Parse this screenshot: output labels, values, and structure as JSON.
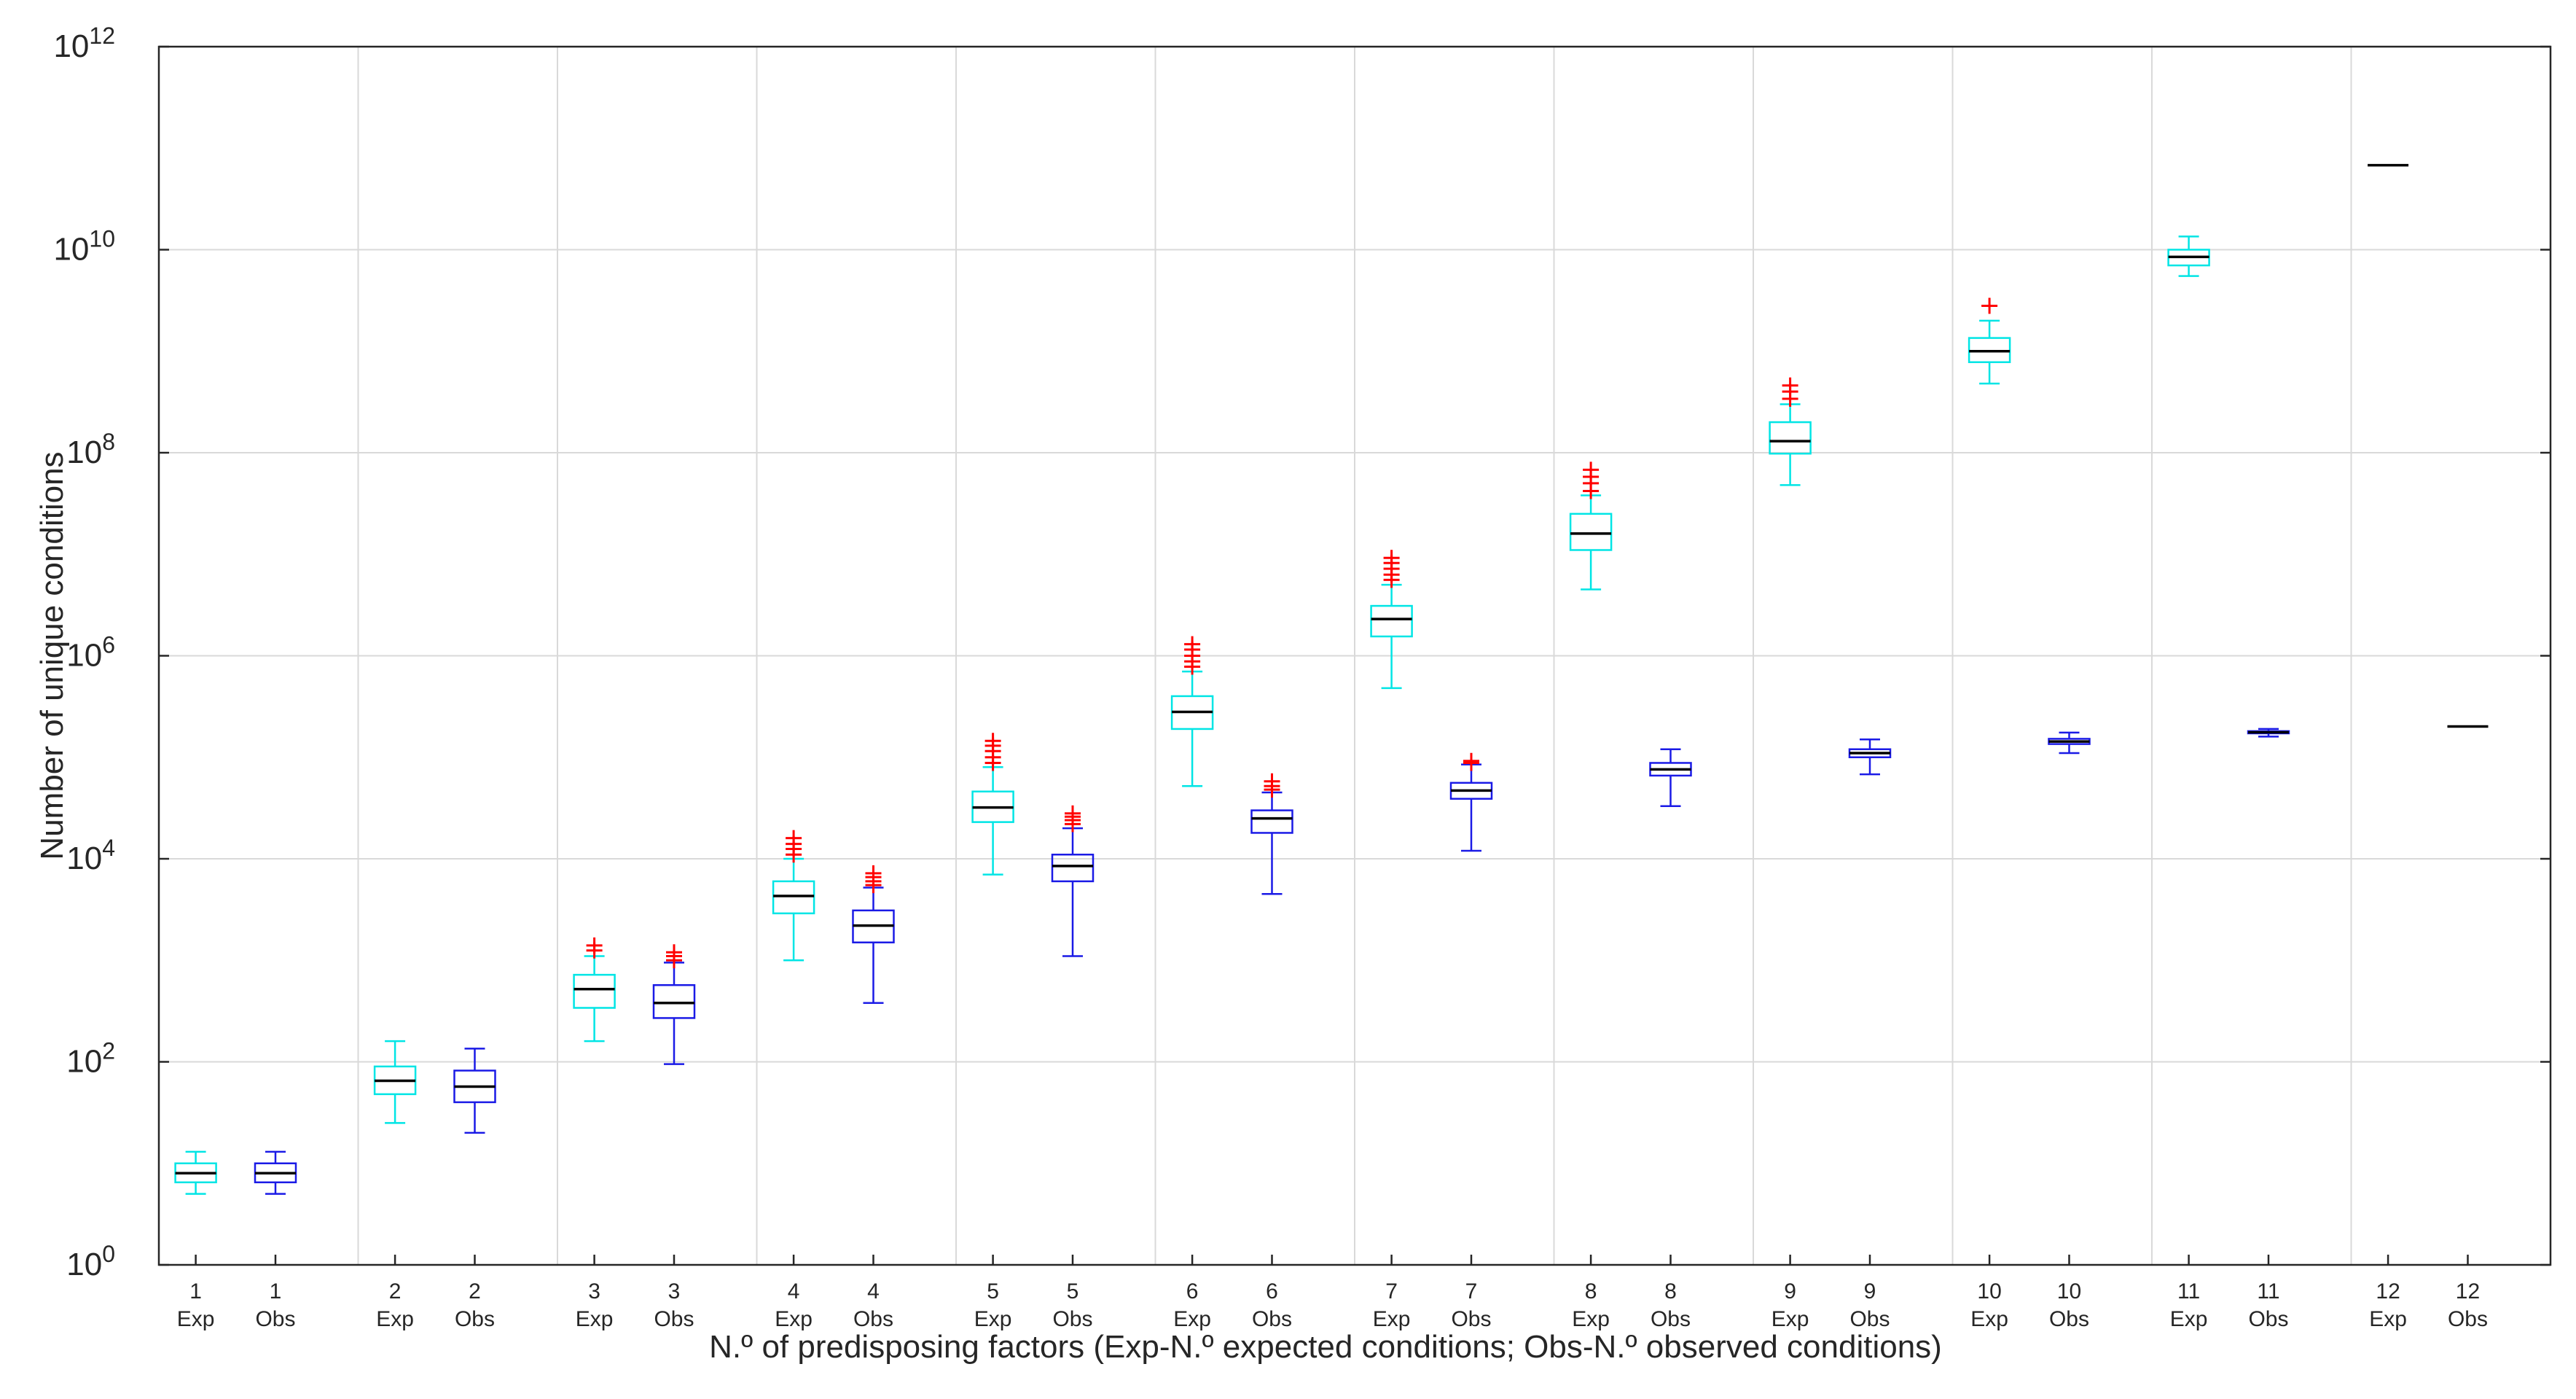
{
  "chart_data": {
    "type": "box",
    "title": "",
    "xlabel": "N.º of predisposing factors (Exp-N.º expected conditions; Obs-N.º observed conditions)",
    "ylabel": "Number of unique conditions",
    "yscale": "log",
    "ylim": [
      1,
      1000000000000
    ],
    "grid": true,
    "y_ticks": [
      {
        "exp": 0
      },
      {
        "exp": 2
      },
      {
        "exp": 4
      },
      {
        "exp": 6
      },
      {
        "exp": 8
      },
      {
        "exp": 10
      },
      {
        "exp": 12
      }
    ],
    "colors": {
      "expected": "#00e5e5",
      "observed": "#1a1ae6",
      "median": "#000000",
      "outlier": "#ff0000",
      "grid": "#d9d9d9"
    },
    "groups": [
      {
        "factor": "1",
        "boxes": [
          {
            "label_top": "1",
            "label_bottom": "Exp",
            "series": "expected",
            "whisker_low": 5,
            "q1": 6.5,
            "median": 8,
            "q3": 10,
            "whisker_high": 13,
            "outliers": []
          },
          {
            "label_top": "1",
            "label_bottom": "Obs",
            "series": "observed",
            "whisker_low": 5,
            "q1": 6.5,
            "median": 8,
            "q3": 10,
            "whisker_high": 13,
            "outliers": []
          }
        ]
      },
      {
        "factor": "2",
        "boxes": [
          {
            "label_top": "2",
            "label_bottom": "Exp",
            "series": "expected",
            "whisker_low": 25,
            "q1": 48,
            "median": 65,
            "q3": 90,
            "whisker_high": 160,
            "outliers": []
          },
          {
            "label_top": "2",
            "label_bottom": "Obs",
            "series": "observed",
            "whisker_low": 20,
            "q1": 40,
            "median": 57,
            "q3": 82,
            "whisker_high": 135,
            "outliers": []
          }
        ]
      },
      {
        "factor": "3",
        "boxes": [
          {
            "label_top": "3",
            "label_bottom": "Exp",
            "series": "expected",
            "whisker_low": 160,
            "q1": 340,
            "median": 520,
            "q3": 720,
            "whisker_high": 1100,
            "outliers": [
              1250,
              1400
            ]
          },
          {
            "label_top": "3",
            "label_bottom": "Obs",
            "series": "observed",
            "whisker_low": 95,
            "q1": 270,
            "median": 380,
            "q3": 570,
            "whisker_high": 950,
            "outliers": [
              1000,
              1100,
              1200
            ]
          }
        ]
      },
      {
        "factor": "4",
        "boxes": [
          {
            "label_top": "4",
            "label_bottom": "Exp",
            "series": "expected",
            "whisker_low": 1000,
            "q1": 2900,
            "median": 4300,
            "q3": 6000,
            "whisker_high": 10000,
            "outliers": [
              11000,
              12500,
              14000,
              16000
            ]
          },
          {
            "label_top": "4",
            "label_bottom": "Obs",
            "series": "observed",
            "whisker_low": 380,
            "q1": 1500,
            "median": 2200,
            "q3": 3100,
            "whisker_high": 5200,
            "outliers": [
              5500,
              6000,
              6600,
              7200
            ]
          }
        ]
      },
      {
        "factor": "5",
        "boxes": [
          {
            "label_top": "5",
            "label_bottom": "Exp",
            "series": "expected",
            "whisker_low": 7000,
            "q1": 23000,
            "median": 32000,
            "q3": 46000,
            "whisker_high": 80000,
            "outliers": [
              88000,
              100000,
              115000,
              130000,
              145000
            ]
          },
          {
            "label_top": "5",
            "label_bottom": "Obs",
            "series": "observed",
            "whisker_low": 1100,
            "q1": 6000,
            "median": 8500,
            "q3": 11000,
            "whisker_high": 20000,
            "outliers": [
              22000,
              24000,
              26000,
              28000
            ]
          }
        ]
      },
      {
        "factor": "6",
        "boxes": [
          {
            "label_top": "6",
            "label_bottom": "Exp",
            "series": "expected",
            "whisker_low": 52000,
            "q1": 190000,
            "median": 280000,
            "q3": 400000,
            "whisker_high": 700000,
            "outliers": [
              780000,
              880000,
              1000000,
              1150000,
              1300000
            ]
          },
          {
            "label_top": "6",
            "label_bottom": "Obs",
            "series": "observed",
            "whisker_low": 4500,
            "q1": 18000,
            "median": 25000,
            "q3": 30000,
            "whisker_high": 45000,
            "outliers": [
              48000,
              52000,
              58000
            ]
          }
        ]
      },
      {
        "factor": "7",
        "boxes": [
          {
            "label_top": "7",
            "label_bottom": "Exp",
            "series": "expected",
            "whisker_low": 480000,
            "q1": 1550000,
            "median": 2300000,
            "q3": 3100000,
            "whisker_high": 5000000,
            "outliers": [
              5600000,
              6300000,
              7200000,
              8200000,
              9200000
            ]
          },
          {
            "label_top": "7",
            "label_bottom": "Obs",
            "series": "observed",
            "whisker_low": 12000,
            "q1": 39000,
            "median": 47000,
            "q3": 56000,
            "whisker_high": 85000,
            "outliers": [
              88000,
              92000
            ]
          }
        ]
      },
      {
        "factor": "8",
        "boxes": [
          {
            "label_top": "8",
            "label_bottom": "Exp",
            "series": "expected",
            "whisker_low": 4500000,
            "q1": 11000000,
            "median": 16000000,
            "q3": 25000000,
            "whisker_high": 38000000,
            "outliers": [
              42000000,
              50000000,
              58000000,
              68000000
            ]
          },
          {
            "label_top": "8",
            "label_bottom": "Obs",
            "series": "observed",
            "whisker_low": 33000,
            "q1": 66000,
            "median": 76000,
            "q3": 88000,
            "whisker_high": 120000,
            "outliers": []
          }
        ]
      },
      {
        "factor": "9",
        "boxes": [
          {
            "label_top": "9",
            "label_bottom": "Exp",
            "series": "expected",
            "whisker_low": 48000000,
            "q1": 98000000,
            "median": 130000000,
            "q3": 200000000,
            "whisker_high": 300000000,
            "outliers": [
              340000000,
              400000000,
              460000000
            ]
          },
          {
            "label_top": "9",
            "label_bottom": "Obs",
            "series": "observed",
            "whisker_low": 68000,
            "q1": 100000,
            "median": 110000,
            "q3": 120000,
            "whisker_high": 150000,
            "outliers": []
          }
        ]
      },
      {
        "factor": "10",
        "boxes": [
          {
            "label_top": "10",
            "label_bottom": "Exp",
            "series": "expected",
            "whisker_low": 480000000,
            "q1": 780000000,
            "median": 1000000000,
            "q3": 1350000000,
            "whisker_high": 2000000000,
            "outliers": [
              2800000000
            ]
          },
          {
            "label_top": "10",
            "label_bottom": "Obs",
            "series": "observed",
            "whisker_low": 110000,
            "q1": 135000,
            "median": 143000,
            "q3": 152000,
            "whisker_high": 175000,
            "outliers": []
          }
        ]
      },
      {
        "factor": "11",
        "boxes": [
          {
            "label_top": "11",
            "label_bottom": "Exp",
            "series": "expected",
            "whisker_low": 5500000000,
            "q1": 7000000000,
            "median": 8500000000,
            "q3": 10000000000,
            "whisker_high": 13500000000,
            "outliers": []
          },
          {
            "label_top": "11",
            "label_bottom": "Obs",
            "series": "observed",
            "whisker_low": 160000,
            "q1": 172000,
            "median": 176000,
            "q3": 181000,
            "whisker_high": 190000,
            "outliers": []
          }
        ]
      },
      {
        "factor": "12",
        "boxes": [
          {
            "label_top": "12",
            "label_bottom": "Exp",
            "series": "expected",
            "whisker_low": 68000000000,
            "q1": 68000000000,
            "median": 68000000000,
            "q3": 68000000000,
            "whisker_high": 68000000000,
            "outliers": []
          },
          {
            "label_top": "12",
            "label_bottom": "Obs",
            "series": "observed",
            "whisker_low": 201000,
            "q1": 201000,
            "median": 201000,
            "q3": 201000,
            "whisker_high": 201000,
            "outliers": []
          }
        ]
      }
    ]
  }
}
